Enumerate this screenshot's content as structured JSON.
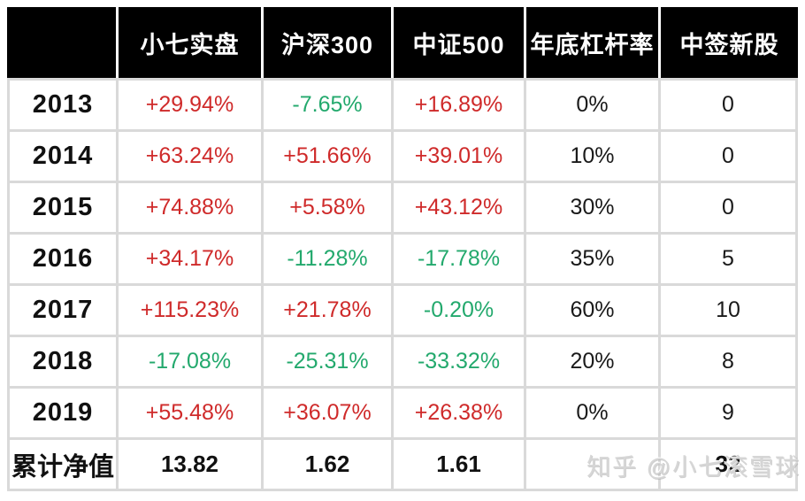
{
  "colors": {
    "red": "#cf2a2a",
    "green": "#23a96d",
    "grid": "#d9d9d9",
    "header_bg": "#000000",
    "header_text": "#ffffff",
    "watermark": "#d6d6d6"
  },
  "watermark": {
    "text": "知乎 @小七滚雪球"
  },
  "table": {
    "headers": [
      "",
      "小七实盘",
      "沪深300",
      "中证500",
      "年底杠杆率",
      "中签新股"
    ],
    "column_names": [
      "year",
      "xiaoqi-shipan",
      "hs300",
      "zz500",
      "year-end-leverage",
      "ipo-wins"
    ],
    "rows": [
      {
        "year": "2013",
        "cells": [
          {
            "text": "+29.94%",
            "dir": "up"
          },
          {
            "text": "-7.65%",
            "dir": "down"
          },
          {
            "text": "+16.89%",
            "dir": "up"
          },
          {
            "text": "0%",
            "dir": "plain"
          },
          {
            "text": "0",
            "dir": "plain"
          }
        ]
      },
      {
        "year": "2014",
        "cells": [
          {
            "text": "+63.24%",
            "dir": "up"
          },
          {
            "text": "+51.66%",
            "dir": "up"
          },
          {
            "text": "+39.01%",
            "dir": "up"
          },
          {
            "text": "10%",
            "dir": "plain"
          },
          {
            "text": "0",
            "dir": "plain"
          }
        ]
      },
      {
        "year": "2015",
        "cells": [
          {
            "text": "+74.88%",
            "dir": "up"
          },
          {
            "text": "+5.58%",
            "dir": "up"
          },
          {
            "text": "+43.12%",
            "dir": "up"
          },
          {
            "text": "30%",
            "dir": "plain"
          },
          {
            "text": "0",
            "dir": "plain"
          }
        ]
      },
      {
        "year": "2016",
        "cells": [
          {
            "text": "+34.17%",
            "dir": "up"
          },
          {
            "text": "-11.28%",
            "dir": "down"
          },
          {
            "text": "-17.78%",
            "dir": "down"
          },
          {
            "text": "35%",
            "dir": "plain"
          },
          {
            "text": "5",
            "dir": "plain"
          }
        ]
      },
      {
        "year": "2017",
        "cells": [
          {
            "text": "+115.23%",
            "dir": "up"
          },
          {
            "text": "+21.78%",
            "dir": "up"
          },
          {
            "text": "-0.20%",
            "dir": "down"
          },
          {
            "text": "60%",
            "dir": "plain"
          },
          {
            "text": "10",
            "dir": "plain"
          }
        ]
      },
      {
        "year": "2018",
        "cells": [
          {
            "text": "-17.08%",
            "dir": "down"
          },
          {
            "text": "-25.31%",
            "dir": "down"
          },
          {
            "text": "-33.32%",
            "dir": "down"
          },
          {
            "text": "20%",
            "dir": "plain"
          },
          {
            "text": "8",
            "dir": "plain"
          }
        ]
      },
      {
        "year": "2019",
        "cells": [
          {
            "text": "+55.48%",
            "dir": "up"
          },
          {
            "text": "+36.07%",
            "dir": "up"
          },
          {
            "text": "+26.38%",
            "dir": "up"
          },
          {
            "text": "0%",
            "dir": "plain"
          },
          {
            "text": "9",
            "dir": "plain"
          }
        ]
      }
    ],
    "footer": {
      "label": "累计净值",
      "values": [
        "13.82",
        "1.62",
        "1.61",
        "",
        "32"
      ]
    }
  },
  "chart_data": {
    "type": "table",
    "columns": [
      "",
      "小七实盘",
      "沪深300",
      "中证500",
      "年底杠杆率",
      "中签新股"
    ],
    "rows": [
      [
        "2013",
        "+29.94%",
        "-7.65%",
        "+16.89%",
        "0%",
        "0"
      ],
      [
        "2014",
        "+63.24%",
        "+51.66%",
        "+39.01%",
        "10%",
        "0"
      ],
      [
        "2015",
        "+74.88%",
        "+5.58%",
        "+43.12%",
        "30%",
        "0"
      ],
      [
        "2016",
        "+34.17%",
        "-11.28%",
        "-17.78%",
        "35%",
        "5"
      ],
      [
        "2017",
        "+115.23%",
        "+21.78%",
        "-0.20%",
        "60%",
        "10"
      ],
      [
        "2018",
        "-17.08%",
        "-25.31%",
        "-33.32%",
        "20%",
        "8"
      ],
      [
        "2019",
        "+55.48%",
        "+36.07%",
        "+26.38%",
        "0%",
        "9"
      ],
      [
        "累计净值",
        "13.82",
        "1.62",
        "1.61",
        "",
        "32"
      ]
    ],
    "notes": "positive returns shown in red, negative returns in green; gray watermark 知乎 @小七滚雪球 overlays bottom-right cells"
  }
}
